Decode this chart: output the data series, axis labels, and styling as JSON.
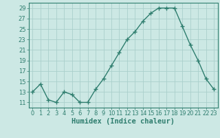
{
  "x": [
    0,
    1,
    2,
    3,
    4,
    5,
    6,
    7,
    8,
    9,
    10,
    11,
    12,
    13,
    14,
    15,
    16,
    17,
    18,
    19,
    20,
    21,
    22,
    23
  ],
  "y": [
    13,
    14.5,
    11.5,
    11,
    13,
    12.5,
    11,
    11,
    13.5,
    15.5,
    18,
    20.5,
    23,
    24.5,
    26.5,
    28,
    29,
    29,
    29,
    25.5,
    22,
    19,
    15.5,
    13.5
  ],
  "line_color": "#2e7d6e",
  "bg_color": "#cce8e4",
  "grid_color": "#aacfcb",
  "xlabel": "Humidex (Indice chaleur)",
  "yticks": [
    11,
    13,
    15,
    17,
    19,
    21,
    23,
    25,
    27,
    29
  ],
  "xticks": [
    0,
    1,
    2,
    3,
    4,
    5,
    6,
    7,
    8,
    9,
    10,
    11,
    12,
    13,
    14,
    15,
    16,
    17,
    18,
    19,
    20,
    21,
    22,
    23
  ],
  "xlim": [
    -0.5,
    23.5
  ],
  "ylim": [
    10.0,
    30.0
  ],
  "xlabel_fontsize": 7.5,
  "tick_fontsize": 6,
  "marker": "+",
  "linewidth": 1.0,
  "markersize": 4
}
